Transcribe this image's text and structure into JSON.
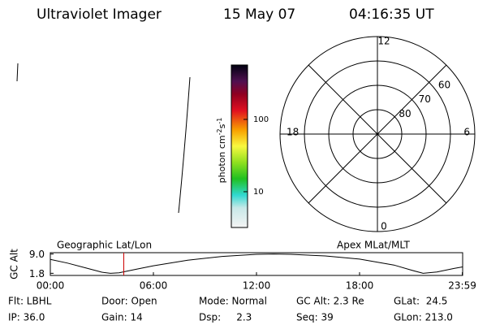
{
  "header": {
    "title": "Ultraviolet Imager",
    "date": "15 May 07",
    "time": "04:16:35 UT"
  },
  "colorbar": {
    "label": "photon cm",
    "exp1": "-2",
    "unit2": "s",
    "exp2": "-1",
    "scale": "log",
    "lim": [
      3.2,
      565
    ],
    "ticks": [
      10,
      100
    ]
  },
  "polar": {
    "lat_lim": [
      50,
      90
    ],
    "lat_rings": [
      80,
      70,
      60
    ],
    "mlt_labels": [
      12,
      6,
      18,
      0
    ]
  },
  "orbit": {
    "y_label": "GC Alt",
    "left_label": "Geographic Lat/Lon",
    "right_label": "Apex MLat/MLT",
    "x": [
      0,
      1,
      2,
      3,
      3.5,
      4,
      5,
      6,
      8,
      10,
      12,
      13,
      14,
      16,
      18,
      20,
      21,
      21.7,
      22.5,
      23.5,
      24
    ],
    "values": [
      7.0,
      5.6,
      3.9,
      2.2,
      1.8,
      2.0,
      3.3,
      4.6,
      6.7,
      8.1,
      8.9,
      9.0,
      8.9,
      8.3,
      7.1,
      4.9,
      3.0,
      1.8,
      2.3,
      3.6,
      4.2
    ],
    "xlim": [
      0,
      24
    ],
    "xticks": [
      {
        "value": 0,
        "label": "00:00"
      },
      {
        "value": 6,
        "label": "06:00"
      },
      {
        "value": 12,
        "label": "12:00"
      },
      {
        "value": 18,
        "label": "18:00"
      },
      {
        "value": 23.98,
        "label": "23:59"
      }
    ],
    "ylim": [
      1,
      9.5
    ],
    "yticks": [
      {
        "value": 9,
        "label": "9.0"
      },
      {
        "value": 1.8,
        "label": "1.8"
      }
    ],
    "marker": {
      "value": 4.276,
      "color": "#cc0000"
    }
  },
  "status": [
    [
      "Flt: LBHL",
      "Door: Open",
      "Mode: Normal",
      "GC Alt: 2.3 Re",
      "GLat:  24.5"
    ],
    [
      "IP: 36.0",
      "Gain: 14",
      "Dsp:     2.3",
      "Seq: 39",
      "GLon: 213.0"
    ]
  ]
}
